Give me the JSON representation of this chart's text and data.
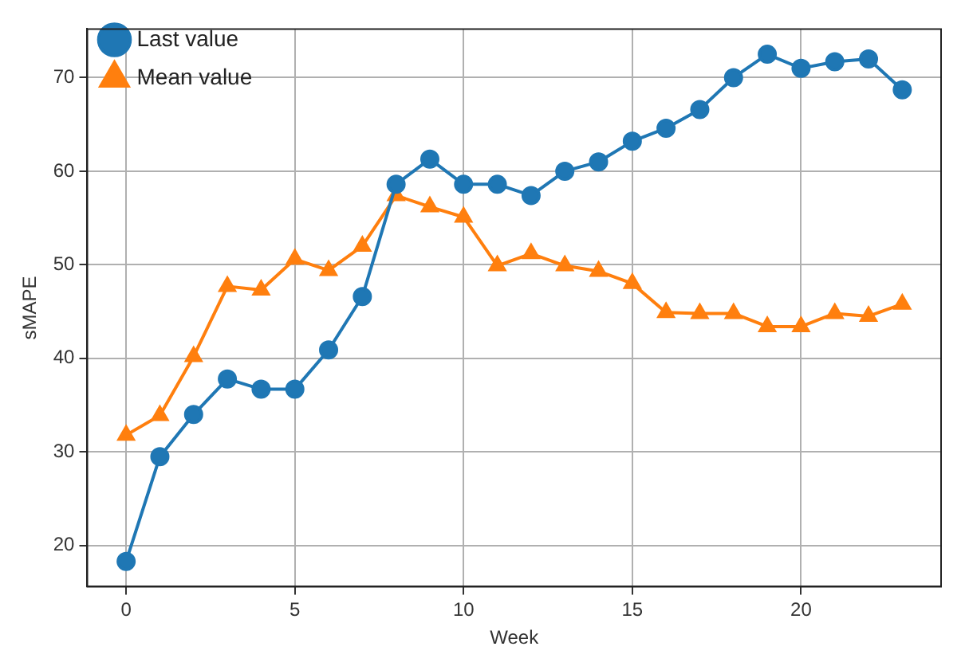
{
  "chart_data": {
    "type": "line",
    "xlabel": "Week",
    "ylabel": "sMAPE",
    "x": [
      0,
      1,
      2,
      3,
      4,
      5,
      6,
      7,
      8,
      9,
      10,
      11,
      12,
      13,
      14,
      15,
      16,
      17,
      18,
      19,
      20,
      21,
      22,
      23
    ],
    "series": [
      {
        "name": "Last value",
        "color": "#1f77b4",
        "marker": "circle",
        "values": [
          18.3,
          29.5,
          34.0,
          37.8,
          36.7,
          36.7,
          40.9,
          46.6,
          58.6,
          61.3,
          58.6,
          58.6,
          57.4,
          60.0,
          61.0,
          63.2,
          64.6,
          66.6,
          70.0,
          72.5,
          71.0,
          71.7,
          72.0,
          68.7
        ]
      },
      {
        "name": "Mean value",
        "color": "#ff7f0e",
        "marker": "triangle",
        "values": [
          31.8,
          33.9,
          40.2,
          47.7,
          47.3,
          50.6,
          49.4,
          52.0,
          57.4,
          56.2,
          55.1,
          49.9,
          51.2,
          49.9,
          49.3,
          48.0,
          44.9,
          44.8,
          44.8,
          43.4,
          43.4,
          44.8,
          44.5,
          45.8
        ]
      }
    ],
    "xlim": [
      -1.15,
      24.15
    ],
    "xticks": [
      0,
      5,
      10,
      15,
      20
    ],
    "ylim": [
      15.6,
      75.2
    ],
    "yticks": [
      20,
      30,
      40,
      50,
      60,
      70
    ],
    "grid": true,
    "legend": "top left"
  }
}
